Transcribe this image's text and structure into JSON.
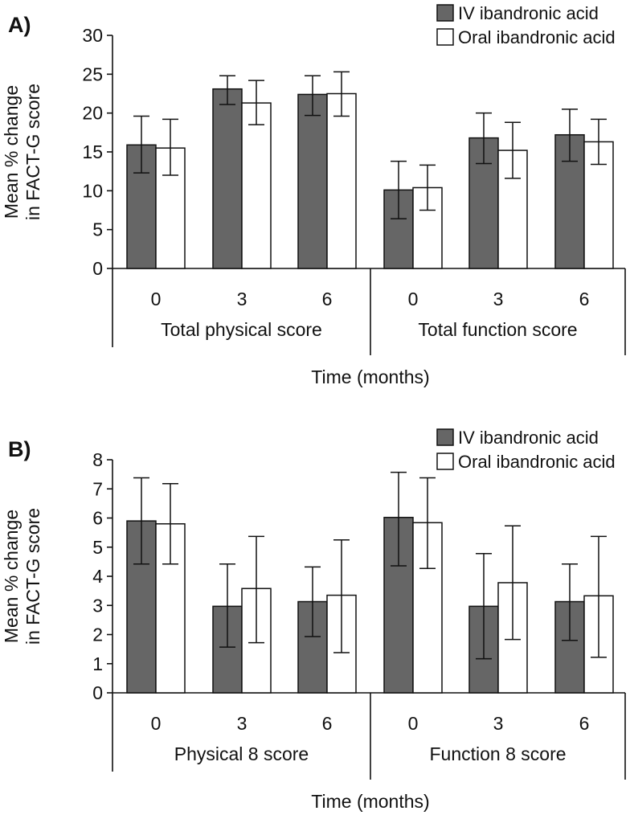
{
  "chart_data": [
    {
      "panel_label": "A)",
      "type": "bar",
      "ylabel_lines": [
        "Mean % change",
        "in FACT-G score"
      ],
      "xlabel": "Time (months)",
      "ylim": [
        0,
        30
      ],
      "yticks": [
        0,
        5,
        10,
        15,
        20,
        25,
        30
      ],
      "legend": [
        "IV ibandronic  acid",
        "Oral ibandronic acid"
      ],
      "groups": [
        {
          "label": "Total physical score",
          "categories": [
            "0",
            "3",
            "6"
          ],
          "series": [
            {
              "name": "IV ibandronic acid",
              "values": [
                15.9,
                23.1,
                22.4
              ],
              "err_low": [
                12.3,
                21.1,
                19.7
              ],
              "err_high": [
                19.6,
                24.8,
                24.8
              ]
            },
            {
              "name": "Oral ibandronic acid",
              "values": [
                15.5,
                21.3,
                22.5
              ],
              "err_low": [
                12.0,
                18.5,
                19.6
              ],
              "err_high": [
                19.2,
                24.2,
                25.3
              ]
            }
          ]
        },
        {
          "label": "Total function score",
          "categories": [
            "0",
            "3",
            "6"
          ],
          "series": [
            {
              "name": "IV ibandronic acid",
              "values": [
                10.1,
                16.8,
                17.2
              ],
              "err_low": [
                6.4,
                13.5,
                13.8
              ],
              "err_high": [
                13.8,
                20.0,
                20.5
              ]
            },
            {
              "name": "Oral ibandronic acid",
              "values": [
                10.4,
                15.2,
                16.3
              ],
              "err_low": [
                7.5,
                11.6,
                13.4
              ],
              "err_high": [
                13.3,
                18.8,
                19.2
              ]
            }
          ]
        }
      ]
    },
    {
      "panel_label": "B)",
      "type": "bar",
      "ylabel_lines": [
        "Mean % change",
        "in FACT-G score"
      ],
      "xlabel": "Time (months)",
      "ylim": [
        0,
        8
      ],
      "yticks": [
        0,
        1,
        2,
        3,
        4,
        5,
        6,
        7,
        8
      ],
      "legend": [
        "IV ibandronic  acid",
        "Oral ibandronic acid"
      ],
      "groups": [
        {
          "label": "Physical 8 score",
          "categories": [
            "0",
            "3",
            "6"
          ],
          "series": [
            {
              "name": "IV ibandronic acid",
              "values": [
                5.9,
                2.97,
                3.13
              ],
              "err_low": [
                4.42,
                1.57,
                1.93
              ],
              "err_high": [
                7.38,
                4.42,
                4.32
              ]
            },
            {
              "name": "Oral ibandronic acid",
              "values": [
                5.8,
                3.58,
                3.35
              ],
              "err_low": [
                4.42,
                1.72,
                1.38
              ],
              "err_high": [
                7.18,
                5.37,
                5.25
              ]
            }
          ]
        },
        {
          "label": "Function 8 score",
          "categories": [
            "0",
            "3",
            "6"
          ],
          "series": [
            {
              "name": "IV ibandronic acid",
              "values": [
                6.02,
                2.97,
                3.13
              ],
              "err_low": [
                4.36,
                1.17,
                1.8
              ],
              "err_high": [
                7.57,
                4.78,
                4.42
              ]
            },
            {
              "name": "Oral ibandronic acid",
              "values": [
                5.84,
                3.78,
                3.33
              ],
              "err_low": [
                4.27,
                1.83,
                1.22
              ],
              "err_high": [
                7.38,
                5.73,
                5.37
              ]
            }
          ]
        }
      ]
    }
  ],
  "colors": {
    "iv_fill": "#666666",
    "oral_fill": "#ffffff",
    "stroke": "#111111"
  }
}
